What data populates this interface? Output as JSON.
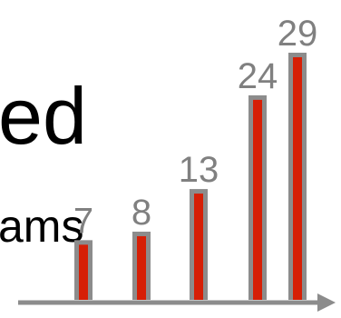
{
  "slide": {
    "title_fragment": "ed",
    "body_fragment": "ams"
  },
  "colors": {
    "bar_fill": "#d61f06",
    "bar_outline": "#8c8c8c",
    "axis": "#8c8c8c",
    "label": "#808080",
    "text": "#000000",
    "background": "#ffffff"
  },
  "chart_data": {
    "type": "bar",
    "categories": [
      "",
      "",
      "",
      "",
      ""
    ],
    "values": [
      7,
      8,
      13,
      24,
      29
    ],
    "data_labels": [
      "7",
      "8",
      "13",
      "24",
      "29"
    ],
    "title": "",
    "xlabel": "",
    "ylabel": "",
    "ylim": [
      0,
      29
    ],
    "grid": false,
    "legend": "none",
    "x_axis": "arrow"
  }
}
